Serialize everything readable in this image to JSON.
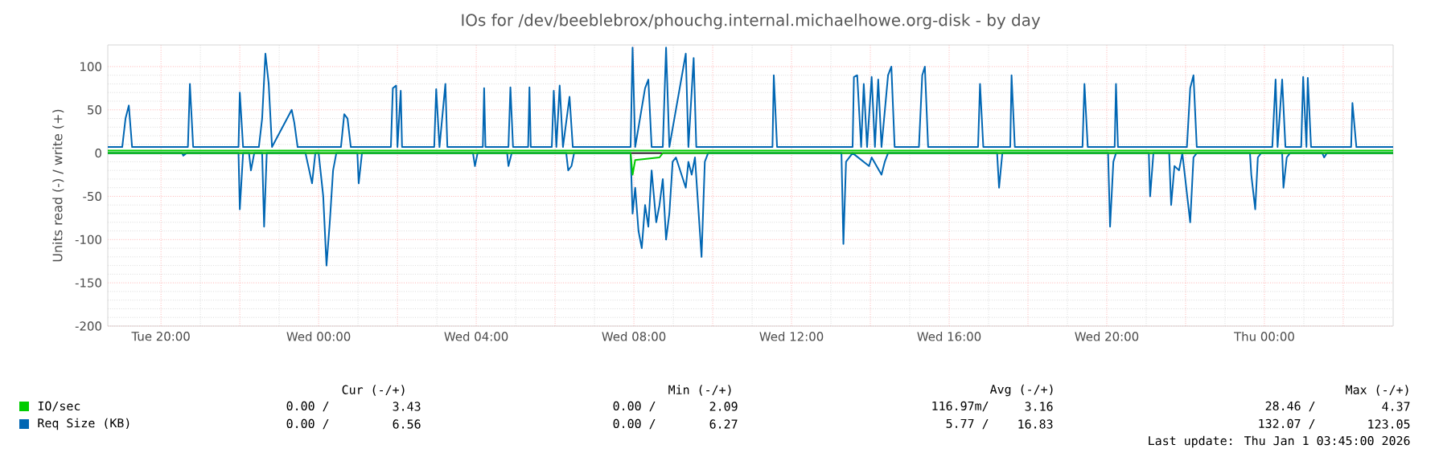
{
  "chart_data": {
    "type": "line",
    "title": "IOs for /dev/beeblebrox/phouchg.internal.michaelhowe.org-disk - by day",
    "ylabel": "Units read (-) / write (+)",
    "xlim": [
      "2025-12-30T18:39",
      "2026-01-01T03:16"
    ],
    "ylim": [
      -200,
      125
    ],
    "xticks": [
      {
        "value": "2025-12-30T20:00",
        "label": "Tue 20:00"
      },
      {
        "value": "2025-12-30T22:00",
        "label": null
      },
      {
        "value": "2025-12-31T00:00",
        "label": "Wed 00:00"
      },
      {
        "value": "2025-12-31T02:00",
        "label": null
      },
      {
        "value": "2025-12-31T04:00",
        "label": "Wed 04:00"
      },
      {
        "value": "2025-12-31T06:00",
        "label": null
      },
      {
        "value": "2025-12-31T08:00",
        "label": "Wed 08:00"
      },
      {
        "value": "2025-12-31T10:00",
        "label": null
      },
      {
        "value": "2025-12-31T12:00",
        "label": "Wed 12:00"
      },
      {
        "value": "2025-12-31T14:00",
        "label": null
      },
      {
        "value": "2025-12-31T16:00",
        "label": "Wed 16:00"
      },
      {
        "value": "2025-12-31T18:00",
        "label": null
      },
      {
        "value": "2025-12-31T20:00",
        "label": "Wed 20:00"
      },
      {
        "value": "2025-12-31T22:00",
        "label": null
      },
      {
        "value": "2026-01-01T00:00",
        "label": "Thu 00:00"
      },
      {
        "value": "2026-01-01T02:00",
        "label": null
      }
    ],
    "yticks": [
      -200,
      -150,
      -100,
      -50,
      0,
      50,
      100
    ],
    "grid": true,
    "legend": "bottom",
    "series": [
      {
        "name": "IO/sec",
        "color": "#00cc00",
        "x": [
          "2025-12-30T18:39",
          "2025-12-31T07:55",
          "2025-12-31T08:02",
          "2025-12-31T09:04",
          "2026-01-01T03:16"
        ],
        "values": [
          3,
          3,
          3,
          3,
          3
        ]
      },
      {
        "color": "#00cc00",
        "x": [
          "2025-12-30T18:39",
          "2025-12-31T07:55",
          "2025-12-31T07:58",
          "2025-12-31T08:02",
          "2025-12-31T08:39",
          "2025-12-31T08:44",
          "2026-01-01T03:16"
        ],
        "values": [
          0,
          0,
          -25,
          -8,
          -5,
          0,
          0
        ]
      },
      {
        "name": "Req Size (KB)",
        "color": "#0066b3",
        "x": [
          "2025-12-30T18:39",
          "2025-12-30T19:01",
          "2025-12-30T19:06",
          "2025-12-30T19:11",
          "2025-12-30T19:16",
          "2025-12-30T20:41",
          "2025-12-30T20:44",
          "2025-12-30T20:49",
          "2025-12-30T21:58",
          "2025-12-30T22:00",
          "2025-12-30T22:05",
          "2025-12-30T22:29",
          "2025-12-30T22:34",
          "2025-12-30T22:39",
          "2025-12-30T22:44",
          "2025-12-30T22:49",
          "2025-12-30T23:19",
          "2025-12-30T23:23",
          "2025-12-30T23:28",
          "2025-12-30T23:35",
          "2025-12-31T00:34",
          "2025-12-31T00:39",
          "2025-12-31T00:44",
          "2025-12-31T00:49",
          "2025-12-31T01:50",
          "2025-12-31T01:53",
          "2025-12-31T01:58",
          "2025-12-31T02:00",
          "2025-12-31T02:05",
          "2025-12-31T02:07",
          "2025-12-31T02:56",
          "2025-12-31T02:59",
          "2025-12-31T03:04",
          "2025-12-31T03:13",
          "2025-12-31T03:16",
          "2025-12-31T04:10",
          "2025-12-31T04:12",
          "2025-12-31T04:14",
          "2025-12-31T04:49",
          "2025-12-31T04:52",
          "2025-12-31T04:56",
          "2025-12-31T05:19",
          "2025-12-31T05:21",
          "2025-12-31T05:23",
          "2025-12-31T05:55",
          "2025-12-31T05:58",
          "2025-12-31T06:02",
          "2025-12-31T06:07",
          "2025-12-31T06:12",
          "2025-12-31T06:22",
          "2025-12-31T06:27",
          "2025-12-31T07:55",
          "2025-12-31T07:58",
          "2025-12-31T08:02",
          "2025-12-31T08:17",
          "2025-12-31T08:22",
          "2025-12-31T08:27",
          "2025-12-31T08:44",
          "2025-12-31T08:49",
          "2025-12-31T08:54",
          "2025-12-31T09:19",
          "2025-12-31T09:23",
          "2025-12-31T09:31",
          "2025-12-31T09:35",
          "2025-12-31T09:53",
          "2025-12-31T11:31",
          "2025-12-31T11:33",
          "2025-12-31T11:38",
          "2025-12-31T13:33",
          "2025-12-31T13:35",
          "2025-12-31T13:40",
          "2025-12-31T13:46",
          "2025-12-31T13:50",
          "2025-12-31T13:55",
          "2025-12-31T14:02",
          "2025-12-31T14:07",
          "2025-12-31T14:12",
          "2025-12-31T14:17",
          "2025-12-31T14:27",
          "2025-12-31T14:32",
          "2025-12-31T14:37",
          "2025-12-31T15:14",
          "2025-12-31T15:19",
          "2025-12-31T15:23",
          "2025-12-31T15:28",
          "2025-12-31T16:44",
          "2025-12-31T16:47",
          "2025-12-31T16:52",
          "2025-12-31T17:33",
          "2025-12-31T17:35",
          "2025-12-31T17:40",
          "2025-12-31T19:23",
          "2025-12-31T19:26",
          "2025-12-31T19:31",
          "2025-12-31T20:12",
          "2025-12-31T20:14",
          "2025-12-31T20:17",
          "2025-12-31T22:02",
          "2025-12-31T22:07",
          "2025-12-31T22:12",
          "2025-12-31T22:17",
          "2026-01-01T00:12",
          "2026-01-01T00:17",
          "2026-01-01T00:20",
          "2026-01-01T00:27",
          "2026-01-01T00:32",
          "2026-01-01T00:56",
          "2026-01-01T00:59",
          "2026-01-01T01:04",
          "2026-01-01T01:06",
          "2026-01-01T01:11",
          "2026-01-01T02:12",
          "2026-01-01T02:14",
          "2026-01-01T02:20",
          "2026-01-01T03:16"
        ],
        "values": [
          7,
          7,
          40,
          55,
          7,
          7,
          80,
          7,
          7,
          70,
          7,
          7,
          40,
          115,
          80,
          7,
          50,
          35,
          7,
          7,
          7,
          45,
          40,
          7,
          7,
          75,
          78,
          7,
          72,
          7,
          7,
          74,
          7,
          80,
          7,
          7,
          75,
          7,
          7,
          76,
          7,
          7,
          76,
          7,
          7,
          72,
          7,
          78,
          7,
          65,
          7,
          7,
          122,
          7,
          75,
          85,
          7,
          7,
          122,
          7,
          115,
          7,
          110,
          7,
          7,
          7,
          90,
          7,
          7,
          88,
          90,
          7,
          80,
          7,
          88,
          7,
          85,
          7,
          90,
          100,
          7,
          7,
          90,
          100,
          7,
          7,
          80,
          7,
          7,
          90,
          7,
          7,
          80,
          7,
          7,
          80,
          7,
          7,
          75,
          90,
          7,
          7,
          85,
          7,
          85,
          7,
          7,
          88,
          7,
          87,
          7,
          7,
          58,
          7,
          7
        ]
      },
      {
        "color": "#0066b3",
        "x": [
          "2025-12-30T18:39",
          "2025-12-30T20:32",
          "2025-12-30T20:34",
          "2025-12-30T20:39",
          "2025-12-30T21:58",
          "2025-12-30T22:00",
          "2025-12-30T22:05",
          "2025-12-30T22:14",
          "2025-12-30T22:17",
          "2025-12-30T22:22",
          "2025-12-30T22:34",
          "2025-12-30T22:37",
          "2025-12-30T22:41",
          "2025-12-30T23:40",
          "2025-12-30T23:50",
          "2025-12-30T23:55",
          "2025-12-31T00:00",
          "2025-12-31T00:07",
          "2025-12-31T00:12",
          "2025-12-31T00:17",
          "2025-12-31T00:22",
          "2025-12-31T00:27",
          "2025-12-31T00:59",
          "2025-12-31T01:01",
          "2025-12-31T01:06",
          "2025-12-31T03:55",
          "2025-12-31T03:58",
          "2025-12-31T04:02",
          "2025-12-31T04:47",
          "2025-12-31T04:49",
          "2025-12-31T04:54",
          "2025-12-31T06:17",
          "2025-12-31T06:20",
          "2025-12-31T06:25",
          "2025-12-31T06:29",
          "2025-12-31T07:55",
          "2025-12-31T07:58",
          "2025-12-31T08:02",
          "2025-12-31T08:07",
          "2025-12-31T08:12",
          "2025-12-31T08:17",
          "2025-12-31T08:22",
          "2025-12-31T08:27",
          "2025-12-31T08:34",
          "2025-12-31T08:39",
          "2025-12-31T08:44",
          "2025-12-31T08:49",
          "2025-12-31T08:54",
          "2025-12-31T08:59",
          "2025-12-31T09:04",
          "2025-12-31T09:19",
          "2025-12-31T09:23",
          "2025-12-31T09:28",
          "2025-12-31T09:33",
          "2025-12-31T09:43",
          "2025-12-31T09:48",
          "2025-12-31T09:53",
          "2025-12-31T13:16",
          "2025-12-31T13:19",
          "2025-12-31T13:23",
          "2025-12-31T13:33",
          "2025-12-31T13:58",
          "2025-12-31T14:02",
          "2025-12-31T14:17",
          "2025-12-31T14:22",
          "2025-12-31T14:27",
          "2025-12-31T17:13",
          "2025-12-31T17:16",
          "2025-12-31T17:21",
          "2025-12-31T20:02",
          "2025-12-31T20:05",
          "2025-12-31T20:10",
          "2025-12-31T20:14",
          "2025-12-31T21:04",
          "2025-12-31T21:06",
          "2025-12-31T21:11",
          "2025-12-31T21:35",
          "2025-12-31T21:38",
          "2025-12-31T21:43",
          "2025-12-31T21:50",
          "2025-12-31T21:55",
          "2025-12-31T22:07",
          "2025-12-31T22:12",
          "2025-12-31T22:17",
          "2025-12-31T23:38",
          "2025-12-31T23:40",
          "2025-12-31T23:46",
          "2025-12-31T23:50",
          "2025-12-31T23:55",
          "2026-01-01T00:27",
          "2026-01-01T00:29",
          "2026-01-01T00:34",
          "2026-01-01T00:39",
          "2026-01-01T01:28",
          "2026-01-01T01:31",
          "2026-01-01T01:35",
          "2026-01-01T03:16"
        ],
        "values": [
          0,
          0,
          -3,
          0,
          0,
          -65,
          0,
          0,
          -20,
          0,
          0,
          -85,
          0,
          0,
          -35,
          0,
          0,
          -50,
          -130,
          -80,
          -20,
          0,
          0,
          -35,
          0,
          0,
          -15,
          0,
          0,
          -15,
          0,
          0,
          -20,
          -15,
          0,
          0,
          -70,
          -40,
          -90,
          -110,
          -60,
          -85,
          -20,
          -80,
          -60,
          -30,
          -100,
          -70,
          -10,
          -5,
          -40,
          -10,
          -25,
          -5,
          -120,
          -10,
          0,
          0,
          -105,
          -10,
          0,
          -15,
          -5,
          -25,
          -10,
          0,
          0,
          -40,
          0,
          0,
          -85,
          -10,
          0,
          0,
          -50,
          0,
          0,
          -60,
          -15,
          -20,
          0,
          -80,
          -5,
          0,
          0,
          -25,
          -65,
          -5,
          0,
          0,
          -40,
          -5,
          0,
          0,
          -5,
          0,
          0
        ]
      }
    ],
    "annotations": [
      "Cur (-/+)",
      "Min (-/+)",
      "Avg (-/+)",
      "Max (-/+)",
      "0.00 /",
      "3.43",
      "0.00 /",
      "2.09",
      "116.97m/",
      "3.16",
      "28.46 /",
      "4.37",
      "0.00 /",
      "6.56",
      "0.00 /",
      "6.27",
      "5.77 /",
      "16.83",
      "132.07 /",
      "123.05",
      "Last update: Thu Jan  1 03:45:00 2026"
    ]
  }
}
